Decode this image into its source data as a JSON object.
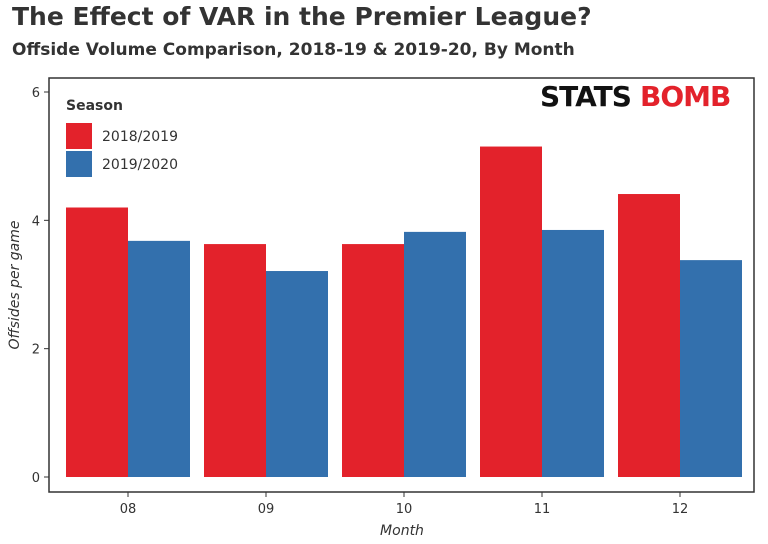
{
  "chart_data": {
    "type": "bar",
    "title": "The Effect of VAR in the Premier League?",
    "subtitle": "Offside Volume Comparison, 2018-19 & 2019-20, By Month",
    "xlabel": "Month",
    "ylabel": "Offsides per game",
    "categories": [
      "08",
      "09",
      "10",
      "11",
      "12"
    ],
    "series": [
      {
        "name": "2018/2019",
        "color": "#e3222b",
        "values": [
          4.2,
          3.63,
          3.63,
          5.15,
          4.41
        ]
      },
      {
        "name": "2019/2020",
        "color": "#3370ad",
        "values": [
          3.68,
          3.21,
          3.82,
          3.85,
          3.38
        ]
      }
    ],
    "yticks": [
      0,
      2,
      4,
      6
    ],
    "ylim": [
      0,
      6.0
    ],
    "legend_title": "Season",
    "legend_position": "top-left",
    "grid": false
  },
  "logo": {
    "part1": "STATS",
    "part2": "BOMB"
  }
}
